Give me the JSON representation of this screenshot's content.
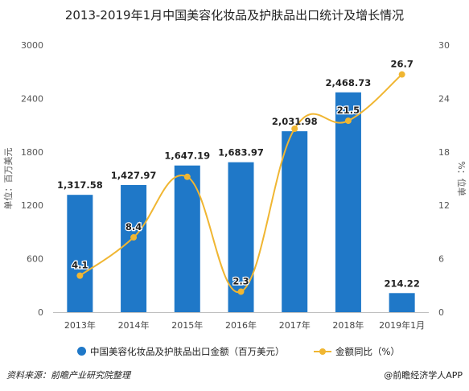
{
  "chart_data": {
    "type": "bar",
    "title": "2013-2019年1月中国美容化妆品及护肤品出口统计及增长情况",
    "categories": [
      "2013年",
      "2014年",
      "2015年",
      "2016年",
      "2017年",
      "2018年",
      "2019年1月"
    ],
    "series": [
      {
        "name": "中国美容化妆品及护肤品出口金额（百万美元）",
        "type": "bar",
        "axis": "left",
        "color": "#1f78c8",
        "values": [
          1317.58,
          1427.97,
          1647.19,
          1683.97,
          2031.98,
          2468.73,
          214.22
        ],
        "labels": [
          "1,317.58",
          "1,427.97",
          "1,647.19",
          "1,683.97",
          "2,031.98",
          "2,468.73",
          "214.22"
        ]
      },
      {
        "name": "金额同比（%）",
        "type": "line",
        "axis": "right",
        "color": "#f0b632",
        "values": [
          4.1,
          8.4,
          15.2,
          2.3,
          20.6,
          21.5,
          26.7
        ],
        "labels": [
          "4.1",
          "8.4",
          "",
          "2.3",
          "",
          "21.5",
          "26.7"
        ]
      }
    ],
    "ylabel": "单位：百万美元",
    "y2label": "%：位单",
    "ylim": [
      0,
      3000
    ],
    "yticks": [
      0,
      600,
      1200,
      1800,
      2400,
      3000
    ],
    "y2lim": [
      0,
      30
    ],
    "y2ticks": [
      0,
      6,
      12,
      18,
      24,
      30
    ],
    "legend_position": "bottom",
    "grid": false
  },
  "footer": {
    "source": "资料来源：前瞻产业研究院整理",
    "credit": "@前瞻经济学人APP"
  }
}
